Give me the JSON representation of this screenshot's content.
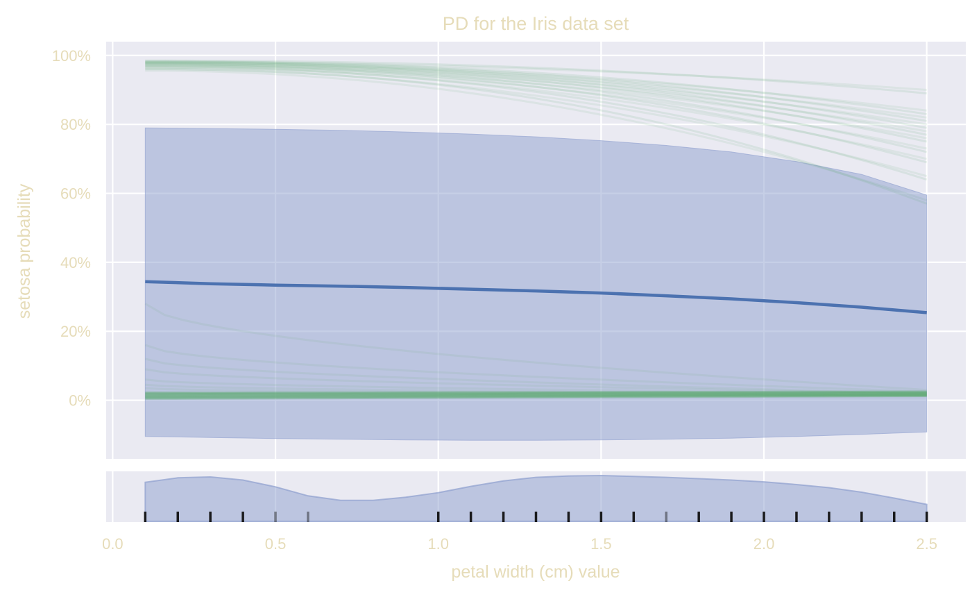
{
  "chart_data": {
    "type": "line",
    "title": "PD for the Iris data set",
    "xlabel": "petal width (cm) value",
    "ylabel": "setosa probability",
    "x_ticks": [
      "0.0",
      "0.5",
      "1.0",
      "1.5",
      "2.0",
      "2.5"
    ],
    "y_ticks": [
      "0%",
      "20%",
      "40%",
      "60%",
      "80%",
      "100%"
    ],
    "xlim": [
      -0.02,
      2.62
    ],
    "ylim": [
      -0.17,
      1.04
    ],
    "grid": true,
    "colors": {
      "background": "#eaeaf2",
      "grid": "#ffffff",
      "text": "#e6dcb9",
      "pd_line": "#4c72b0",
      "band": "#8e9fce",
      "ice": "#55a868",
      "rug": "#111111"
    },
    "x": [
      0.1,
      0.3,
      0.5,
      0.7,
      0.9,
      1.1,
      1.3,
      1.5,
      1.7,
      1.9,
      2.1,
      2.3,
      2.5
    ],
    "pd_mean": {
      "values": [
        0.344,
        0.338,
        0.334,
        0.331,
        0.327,
        0.322,
        0.317,
        0.311,
        0.303,
        0.294,
        0.283,
        0.27,
        0.254
      ]
    },
    "pd_band": {
      "upper": [
        0.79,
        0.788,
        0.786,
        0.783,
        0.778,
        0.772,
        0.764,
        0.753,
        0.739,
        0.72,
        0.692,
        0.655,
        0.595
      ],
      "lower": [
        -0.105,
        -0.108,
        -0.111,
        -0.113,
        -0.115,
        -0.116,
        -0.116,
        -0.115,
        -0.113,
        -0.11,
        -0.105,
        -0.099,
        -0.092
      ]
    },
    "ice_curves_high": {
      "start": [
        0.985,
        0.983,
        0.982,
        0.98,
        0.978,
        0.975,
        0.972,
        0.97,
        0.965,
        0.96
      ],
      "end": [
        0.89,
        0.83,
        0.81,
        0.79,
        0.77,
        0.75,
        0.72,
        0.69,
        0.64,
        0.57
      ]
    },
    "ice_curves_low": {
      "start": [
        0.28,
        0.16,
        0.12,
        0.09,
        0.06,
        0.045,
        0.035,
        0.025,
        0.02,
        0.01
      ],
      "end": [
        0.03,
        0.025,
        0.02,
        0.02,
        0.018,
        0.016,
        0.015,
        0.014,
        0.013,
        0.012
      ]
    },
    "density": {
      "x": [
        0.1,
        0.2,
        0.3,
        0.4,
        0.5,
        0.6,
        0.7,
        0.8,
        0.9,
        1.0,
        1.1,
        1.2,
        1.3,
        1.4,
        1.5,
        1.6,
        1.7,
        1.8,
        1.9,
        2.0,
        2.1,
        2.2,
        2.3,
        2.4,
        2.5
      ],
      "values": [
        0.85,
        0.95,
        0.97,
        0.9,
        0.75,
        0.55,
        0.45,
        0.45,
        0.52,
        0.62,
        0.76,
        0.88,
        0.96,
        0.99,
        1.0,
        0.98,
        0.96,
        0.93,
        0.9,
        0.86,
        0.8,
        0.73,
        0.63,
        0.5,
        0.36
      ]
    },
    "rug": {
      "x": [
        0.1,
        0.2,
        0.3,
        0.4,
        0.5,
        0.6,
        1.0,
        1.1,
        1.2,
        1.3,
        1.4,
        1.5,
        1.6,
        1.7,
        1.8,
        1.9,
        2.0,
        2.1,
        2.2,
        2.3,
        2.4,
        2.5
      ],
      "light": [
        false,
        false,
        false,
        false,
        true,
        true,
        false,
        false,
        false,
        false,
        false,
        false,
        false,
        true,
        false,
        false,
        false,
        false,
        false,
        false,
        false,
        false
      ]
    }
  }
}
